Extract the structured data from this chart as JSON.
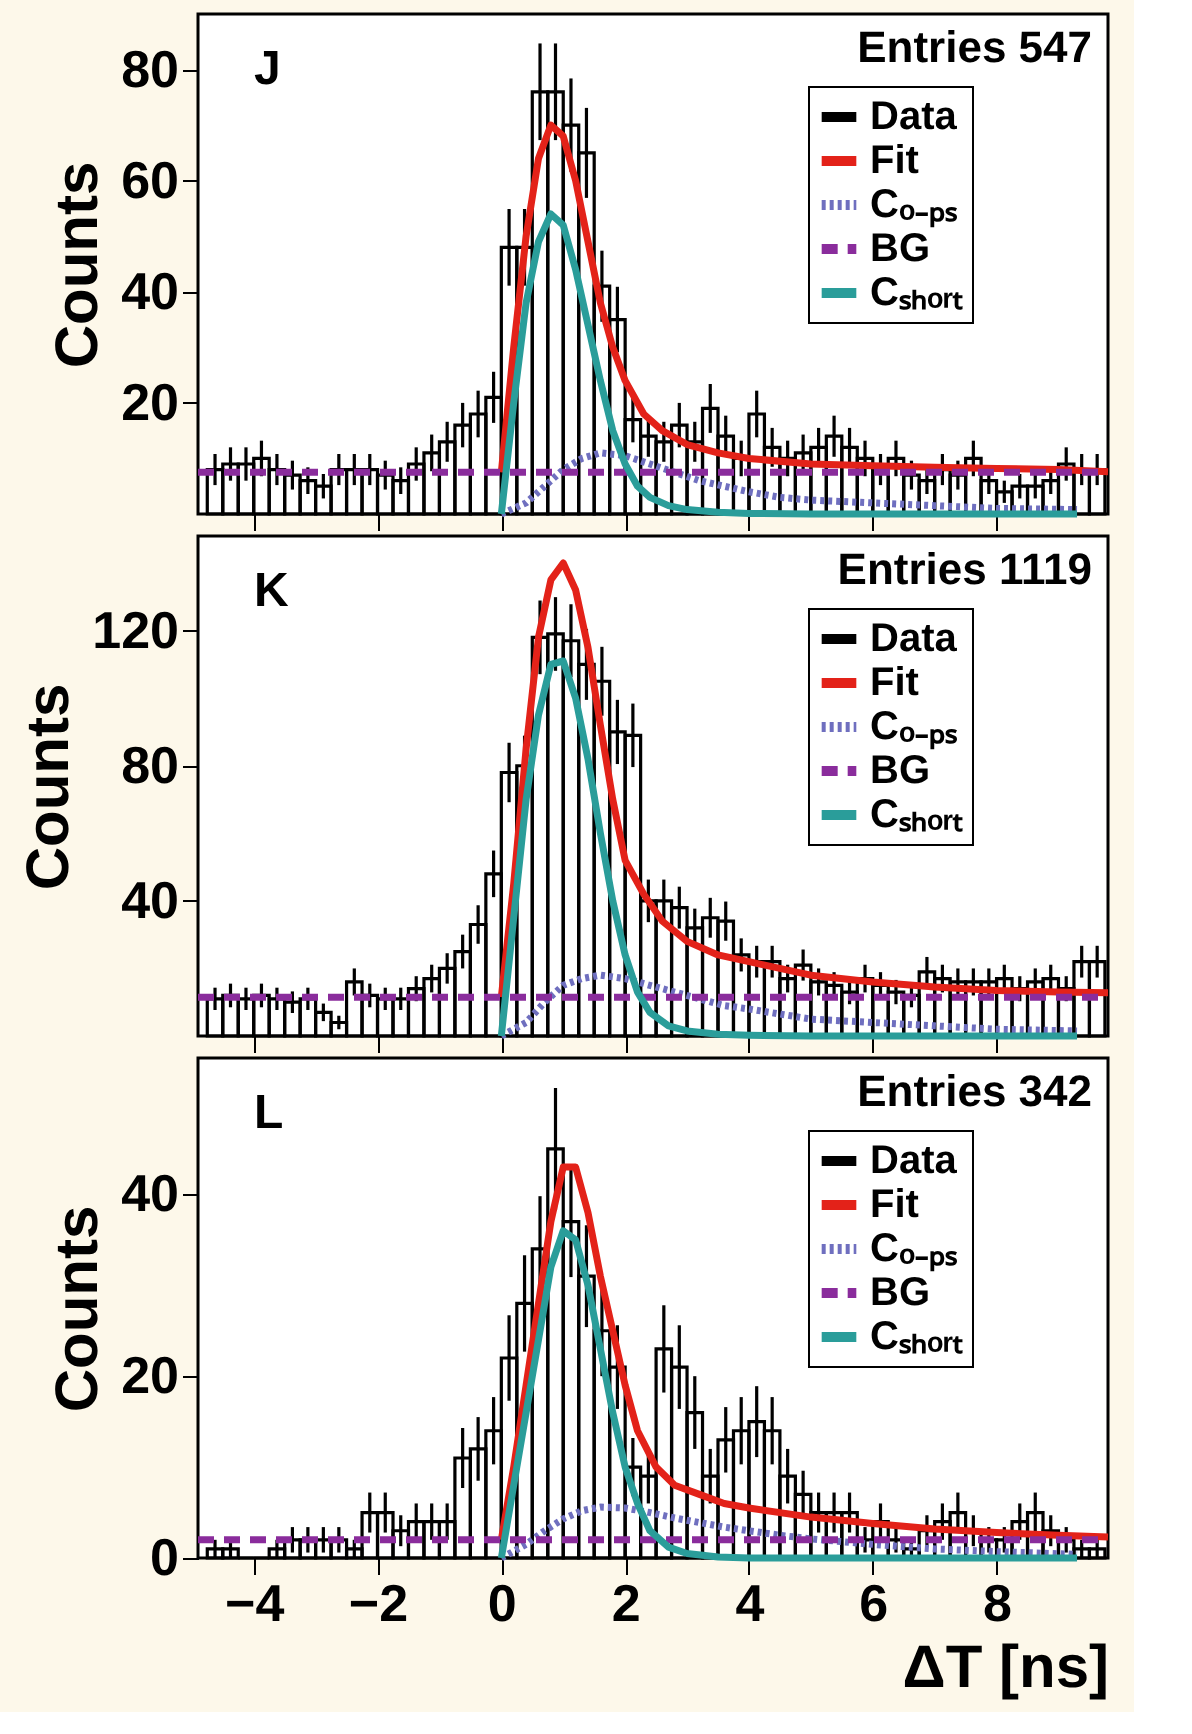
{
  "chart_data": [
    {
      "type": "histogram",
      "ylabel": "Counts",
      "annotations": [
        "J",
        "Entries 547"
      ],
      "legend": "top right",
      "tick_labels": "y",
      "xlim": [
        -4.9,
        9.8
      ],
      "xticks": [
        -4,
        -2,
        0,
        2,
        4,
        6,
        8
      ],
      "ylim": [
        0,
        90
      ],
      "yticks": [
        20,
        40,
        60,
        80
      ],
      "bins": [
        -4.75,
        -4.5,
        -4.25,
        -4,
        -3.75,
        -3.5,
        -3.25,
        -3,
        -2.75,
        -2.5,
        -2.25,
        -2,
        -1.75,
        -1.5,
        -1.25,
        -1,
        -0.75,
        -0.5,
        -0.25,
        0,
        0.25,
        0.5,
        0.75,
        1,
        1.25,
        1.5,
        1.75,
        2,
        2.25,
        2.5,
        2.75,
        3,
        3.25,
        3.5,
        3.75,
        4,
        4.25,
        4.5,
        4.75,
        5,
        5.25,
        5.5,
        5.75,
        6,
        6.25,
        6.5,
        6.75,
        7,
        7.25,
        7.5,
        7.75,
        8,
        8.25,
        8.5,
        8.75,
        9,
        9.25,
        9.5,
        9.75
      ],
      "series": [
        {
          "name": "Data",
          "color": "#000000",
          "values": [
            8,
            9,
            9,
            10,
            8,
            7,
            6,
            5,
            8,
            8,
            8,
            7,
            6,
            9,
            11,
            13,
            16,
            18,
            21,
            48,
            48,
            76,
            76,
            70,
            65,
            41,
            35,
            17,
            14,
            13,
            16,
            13,
            19,
            14,
            10,
            18,
            12,
            10,
            11,
            12,
            14,
            12,
            10,
            8,
            10,
            7,
            6,
            8,
            7,
            10,
            6,
            4,
            5,
            5,
            6,
            9,
            8,
            8
          ],
          "errors": [
            2.8,
            3,
            3,
            3.2,
            2.8,
            2.6,
            2.4,
            2.2,
            2.8,
            2.8,
            2.8,
            2.6,
            2.4,
            3,
            3.3,
            3.6,
            4,
            4.2,
            4.6,
            6.9,
            6.9,
            8.7,
            8.7,
            8.4,
            8.1,
            6.4,
            5.9,
            4.1,
            3.7,
            3.6,
            4,
            3.6,
            4.4,
            3.7,
            3.2,
            4.2,
            3.5,
            3.2,
            3.3,
            3.5,
            3.7,
            3.5,
            3.2,
            2.8,
            3.2,
            2.6,
            2.4,
            2.8,
            2.6,
            3.2,
            2.4,
            2,
            2.2,
            2.2,
            2.4,
            3,
            2.8,
            2.8
          ]
        },
        {
          "name": "Fit",
          "type": "line",
          "color": "#e32219",
          "line_style": "solid",
          "x": [
            0,
            0.2,
            0.4,
            0.6,
            0.8,
            1.0,
            1.2,
            1.4,
            1.6,
            1.8,
            2.0,
            2.3,
            2.6,
            3,
            3.5,
            4,
            5,
            6,
            7,
            8,
            9,
            9.8
          ],
          "values": [
            7.5,
            30,
            50,
            64,
            70,
            68,
            60,
            49,
            38,
            30,
            24,
            18,
            15,
            12.5,
            11,
            10,
            9,
            8.7,
            8.4,
            8.2,
            8,
            7.6
          ]
        },
        {
          "name": "Cₒ₋ₚₛ",
          "type": "line",
          "color": "#6f6fbf",
          "line_style": "dotted",
          "x": [
            0,
            0.4,
            0.7,
            1.0,
            1.3,
            1.6,
            2.0,
            2.4,
            2.8,
            3.2,
            3.6,
            4,
            4.5,
            5,
            6,
            7,
            8,
            9.3
          ],
          "values": [
            0,
            2,
            5,
            8,
            10,
            11,
            10.5,
            9,
            7.5,
            6,
            5,
            4,
            3,
            2.5,
            2,
            1.5,
            1,
            0.8
          ]
        },
        {
          "name": "BG",
          "type": "line",
          "color": "#8a2c9c",
          "line_style": "dashed",
          "x": [
            -4.9,
            9.8
          ],
          "values": [
            7.5,
            7.5
          ]
        },
        {
          "name": "Cₛₕₒᵣₜ",
          "type": "line",
          "color": "#2a9d9a",
          "line_style": "solid",
          "x": [
            0,
            0.2,
            0.4,
            0.6,
            0.8,
            1.0,
            1.2,
            1.4,
            1.6,
            1.8,
            2.0,
            2.2,
            2.4,
            2.7,
            3,
            3.5,
            4,
            5,
            6,
            7,
            8,
            9.3
          ],
          "values": [
            0,
            20,
            38,
            49,
            54,
            52,
            44,
            34,
            24,
            15,
            9,
            5,
            3,
            1.5,
            0.8,
            0.3,
            0.1,
            0,
            0,
            0,
            0,
            0
          ]
        }
      ]
    },
    {
      "type": "histogram",
      "ylabel": "Counts",
      "annotations": [
        "K",
        "Entries 1119"
      ],
      "legend": "top right",
      "tick_labels": "y",
      "xlim": [
        -4.9,
        9.8
      ],
      "xticks": [
        -4,
        -2,
        0,
        2,
        4,
        6,
        8
      ],
      "ylim": [
        0,
        148
      ],
      "yticks": [
        40,
        80,
        120
      ],
      "bins": [
        -4.75,
        -4.5,
        -4.25,
        -4,
        -3.75,
        -3.5,
        -3.25,
        -3,
        -2.75,
        -2.5,
        -2.25,
        -2,
        -1.75,
        -1.5,
        -1.25,
        -1,
        -0.75,
        -0.5,
        -0.25,
        0,
        0.25,
        0.5,
        0.75,
        1,
        1.25,
        1.5,
        1.75,
        2,
        2.25,
        2.5,
        2.75,
        3,
        3.25,
        3.5,
        3.75,
        4,
        4.25,
        4.5,
        4.75,
        5,
        5.25,
        5.5,
        5.75,
        6,
        6.25,
        6.5,
        6.75,
        7,
        7.25,
        7.5,
        7.75,
        8,
        8.25,
        8.5,
        8.75,
        9,
        9.25,
        9.5,
        9.75
      ],
      "series": [
        {
          "name": "Data",
          "color": "#000000",
          "values": [
            11,
            12,
            11,
            12,
            11,
            10,
            11,
            7,
            4,
            16,
            12,
            11,
            11,
            14,
            17,
            20,
            25,
            33,
            48,
            78,
            80,
            118,
            119,
            117,
            110,
            105,
            90,
            89,
            40,
            40,
            38,
            32,
            35,
            34,
            24,
            22,
            22,
            17,
            21,
            16,
            15,
            13,
            17,
            15,
            13,
            12,
            19,
            17,
            16,
            16,
            16,
            17,
            14,
            16,
            17,
            14,
            22,
            22
          ],
          "errors": [
            3.3,
            3.5,
            3.3,
            3.5,
            3.3,
            3.2,
            3.3,
            2.6,
            2,
            4,
            3.5,
            3.3,
            3.3,
            3.7,
            4.1,
            4.5,
            5,
            5.7,
            6.9,
            8.8,
            8.9,
            10.9,
            10.9,
            10.8,
            10.5,
            10.2,
            9.5,
            9.4,
            6.3,
            6.3,
            6.2,
            5.7,
            5.9,
            5.8,
            4.9,
            4.7,
            4.7,
            4.1,
            4.6,
            4,
            3.9,
            3.6,
            4.1,
            3.9,
            3.6,
            3.5,
            4.4,
            4.1,
            4,
            4,
            4,
            4.1,
            3.7,
            4,
            4.1,
            3.7,
            4.7,
            4.7
          ]
        },
        {
          "name": "Fit",
          "type": "line",
          "color": "#e32219",
          "line_style": "solid",
          "x": [
            0,
            0.2,
            0.4,
            0.6,
            0.8,
            1.0,
            1.2,
            1.4,
            1.6,
            1.8,
            2.0,
            2.3,
            2.6,
            3,
            3.5,
            4,
            5,
            6,
            7,
            8,
            9,
            9.8
          ],
          "values": [
            11.5,
            45,
            85,
            118,
            135,
            140,
            132,
            115,
            92,
            70,
            52,
            42,
            34,
            28,
            24,
            22,
            18,
            16,
            14.5,
            13.5,
            13,
            12.8
          ]
        },
        {
          "name": "Cₒ₋ₚₛ",
          "type": "line",
          "color": "#6f6fbf",
          "line_style": "dotted",
          "x": [
            0,
            0.4,
            0.7,
            1.0,
            1.3,
            1.6,
            2.0,
            2.4,
            2.8,
            3.2,
            3.6,
            4,
            4.5,
            5,
            6,
            7,
            8,
            9.3
          ],
          "values": [
            0,
            4,
            10,
            15,
            17,
            18,
            17,
            15,
            13,
            11,
            9,
            8,
            6.5,
            5,
            4,
            3,
            2,
            1.5
          ]
        },
        {
          "name": "BG",
          "type": "line",
          "color": "#8a2c9c",
          "line_style": "dashed",
          "x": [
            -4.9,
            9.8
          ],
          "values": [
            11.5,
            11.5
          ]
        },
        {
          "name": "Cₛₕₒᵣₜ",
          "type": "line",
          "color": "#2a9d9a",
          "line_style": "solid",
          "x": [
            0,
            0.2,
            0.4,
            0.6,
            0.8,
            1.0,
            1.2,
            1.4,
            1.6,
            1.8,
            2.0,
            2.2,
            2.4,
            2.7,
            3,
            3.5,
            4,
            5,
            6,
            7,
            8,
            9.3
          ],
          "values": [
            0,
            35,
            70,
            95,
            110,
            111,
            100,
            82,
            60,
            40,
            24,
            13,
            7,
            3,
            1.5,
            0.5,
            0.2,
            0,
            0,
            0,
            0,
            0
          ]
        }
      ]
    },
    {
      "type": "histogram",
      "xlabel": "ΔT [ns]",
      "ylabel": "Counts",
      "annotations": [
        "L",
        "Entries 342"
      ],
      "legend": "top right",
      "xlim": [
        -4.9,
        9.8
      ],
      "xticks": [
        -4,
        -2,
        0,
        2,
        4,
        6,
        8
      ],
      "ylim": [
        0,
        55
      ],
      "yticks": [
        0,
        20,
        40
      ],
      "bins": [
        -4.75,
        -4.5,
        -4.25,
        -4,
        -3.75,
        -3.5,
        -3.25,
        -3,
        -2.75,
        -2.5,
        -2.25,
        -2,
        -1.75,
        -1.5,
        -1.25,
        -1,
        -0.75,
        -0.5,
        -0.25,
        0,
        0.25,
        0.5,
        0.75,
        1,
        1.25,
        1.5,
        1.75,
        2,
        2.25,
        2.5,
        2.75,
        3,
        3.25,
        3.5,
        3.75,
        4,
        4.25,
        4.5,
        4.75,
        5,
        5.25,
        5.5,
        5.75,
        6,
        6.25,
        6.5,
        6.75,
        7,
        7.25,
        7.5,
        7.75,
        8,
        8.25,
        8.5,
        8.75,
        9,
        9.25,
        9.5,
        9.75
      ],
      "series": [
        {
          "name": "Data",
          "color": "#000000",
          "values": [
            1,
            1,
            0,
            0,
            1,
            2,
            2,
            2,
            2,
            1,
            5,
            5,
            3,
            4,
            4,
            4,
            11,
            12,
            14,
            22,
            28,
            34,
            45,
            37,
            31,
            25,
            21,
            10,
            9,
            23,
            21,
            16,
            9,
            13,
            14,
            15,
            14,
            9,
            7,
            5,
            5,
            5,
            2,
            4,
            2,
            1,
            3,
            4,
            5,
            3,
            2,
            2,
            4,
            5,
            3,
            2,
            1,
            1
          ],
          "errors": [
            1,
            1,
            null,
            null,
            1,
            1.4,
            1.4,
            1.4,
            1.4,
            1,
            2.2,
            2.2,
            1.7,
            2,
            2,
            2,
            3.3,
            3.5,
            3.7,
            4.7,
            5.3,
            5.8,
            6.7,
            6.1,
            5.6,
            5,
            4.6,
            3.2,
            3,
            4.8,
            4.6,
            4,
            3,
            3.6,
            3.7,
            3.9,
            3.7,
            3,
            2.6,
            2.2,
            2.2,
            2.2,
            1.4,
            2,
            1.4,
            1,
            1.7,
            2,
            2.2,
            1.7,
            1.4,
            1.4,
            2,
            2.2,
            1.7,
            1.4,
            1,
            1
          ]
        },
        {
          "name": "Fit",
          "type": "line",
          "color": "#e32219",
          "line_style": "solid",
          "x": [
            0,
            0.2,
            0.4,
            0.6,
            0.8,
            1.0,
            1.2,
            1.4,
            1.6,
            1.8,
            2.0,
            2.2,
            2.5,
            2.8,
            3.2,
            3.6,
            4,
            5,
            6,
            7,
            8,
            9,
            9.8
          ],
          "values": [
            2,
            10,
            19,
            28,
            37,
            43,
            43,
            38,
            31,
            25,
            19,
            14,
            10,
            8,
            7,
            6,
            5.5,
            4.5,
            3.8,
            3.2,
            2.8,
            2.5,
            2.3
          ]
        },
        {
          "name": "Cₒ₋ₚₛ",
          "type": "line",
          "color": "#6f6fbf",
          "line_style": "dotted",
          "x": [
            0,
            0.4,
            0.7,
            1.0,
            1.3,
            1.6,
            2.0,
            2.4,
            2.8,
            3.2,
            3.6,
            4,
            4.5,
            5,
            6,
            7,
            8,
            9.3
          ],
          "values": [
            0,
            1.5,
            3,
            4.3,
            5.2,
            5.6,
            5.5,
            5,
            4.4,
            3.9,
            3.4,
            3,
            2.5,
            2.1,
            1.5,
            1,
            0.7,
            0.4
          ]
        },
        {
          "name": "BG",
          "type": "line",
          "color": "#8a2c9c",
          "line_style": "dashed",
          "x": [
            -4.9,
            9.8
          ],
          "values": [
            2,
            2
          ]
        },
        {
          "name": "Cₛₕₒᵣₜ",
          "type": "line",
          "color": "#2a9d9a",
          "line_style": "solid",
          "x": [
            0,
            0.2,
            0.4,
            0.6,
            0.8,
            1.0,
            1.2,
            1.4,
            1.6,
            1.8,
            2.0,
            2.2,
            2.4,
            2.7,
            3,
            3.5,
            4,
            5,
            6,
            7,
            8,
            9.3
          ],
          "values": [
            0,
            8,
            16,
            24,
            32,
            36,
            35,
            30,
            23,
            16,
            10,
            6,
            3,
            1.2,
            0.5,
            0.1,
            0,
            0,
            0,
            0,
            0,
            0
          ]
        }
      ]
    }
  ]
}
